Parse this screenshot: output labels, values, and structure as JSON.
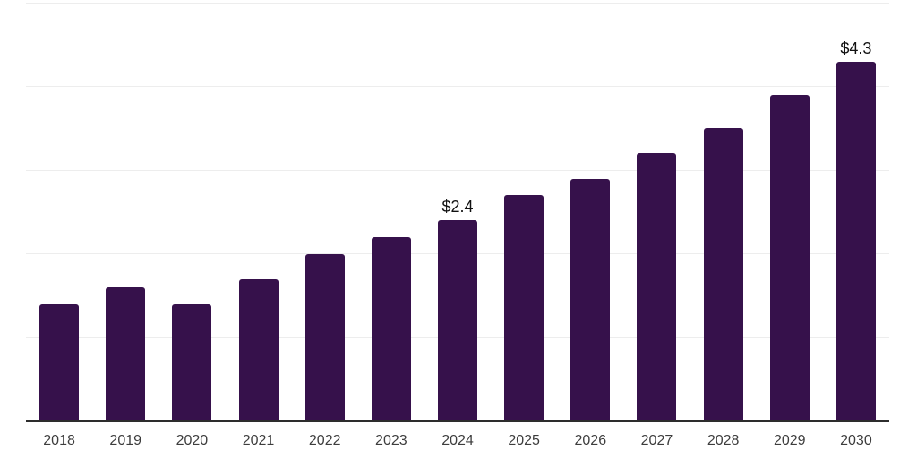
{
  "chart_data": {
    "type": "bar",
    "title": "",
    "xlabel": "",
    "ylabel": "",
    "categories": [
      "2018",
      "2019",
      "2020",
      "2021",
      "2022",
      "2023",
      "2024",
      "2025",
      "2026",
      "2027",
      "2028",
      "2029",
      "2030"
    ],
    "values": [
      1.4,
      1.6,
      1.4,
      1.7,
      2.0,
      2.2,
      2.4,
      2.7,
      2.9,
      3.2,
      3.5,
      3.9,
      4.3
    ],
    "data_labels": {
      "2024": "$2.4",
      "2030": "$4.3"
    },
    "ylim": [
      0,
      5
    ],
    "gridline_values": [
      1,
      2,
      3,
      4,
      5
    ],
    "grid": "horizontal",
    "legend_position": "none",
    "colors": {
      "bar": "#36114B",
      "gridline": "#EDEDED",
      "axis_line": "#2D2D2D",
      "tick_label": "#3D3D3D",
      "data_label": "#111111",
      "background": "#FFFFFF"
    }
  }
}
